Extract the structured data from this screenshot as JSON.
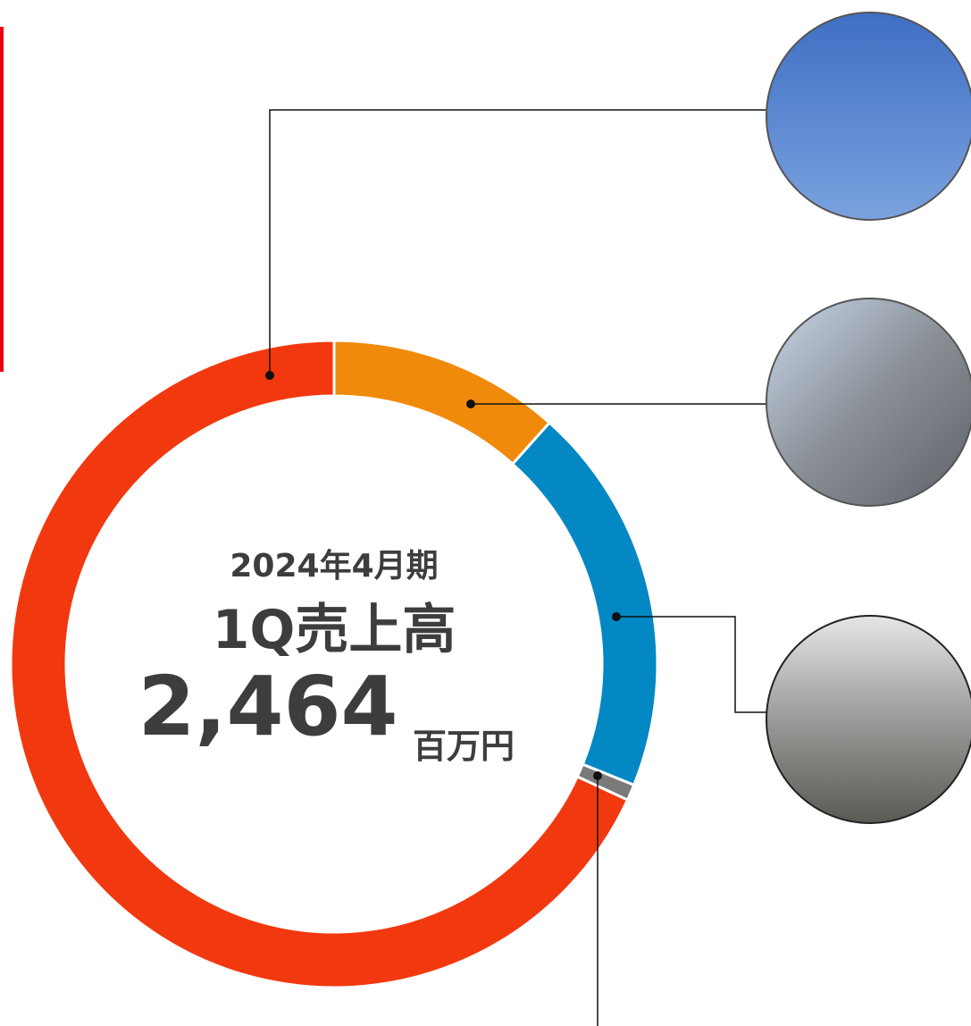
{
  "chart_data": {
    "type": "donut",
    "values": [
      11.6,
      19.5,
      0.8,
      68.1
    ],
    "colors": [
      "#f08a0b",
      "#0388c3",
      "#7a7a7a",
      "#f2380f"
    ],
    "period": "2024年4月期",
    "label": "1Q売上高",
    "total": "2,464",
    "unit": "百万円"
  }
}
